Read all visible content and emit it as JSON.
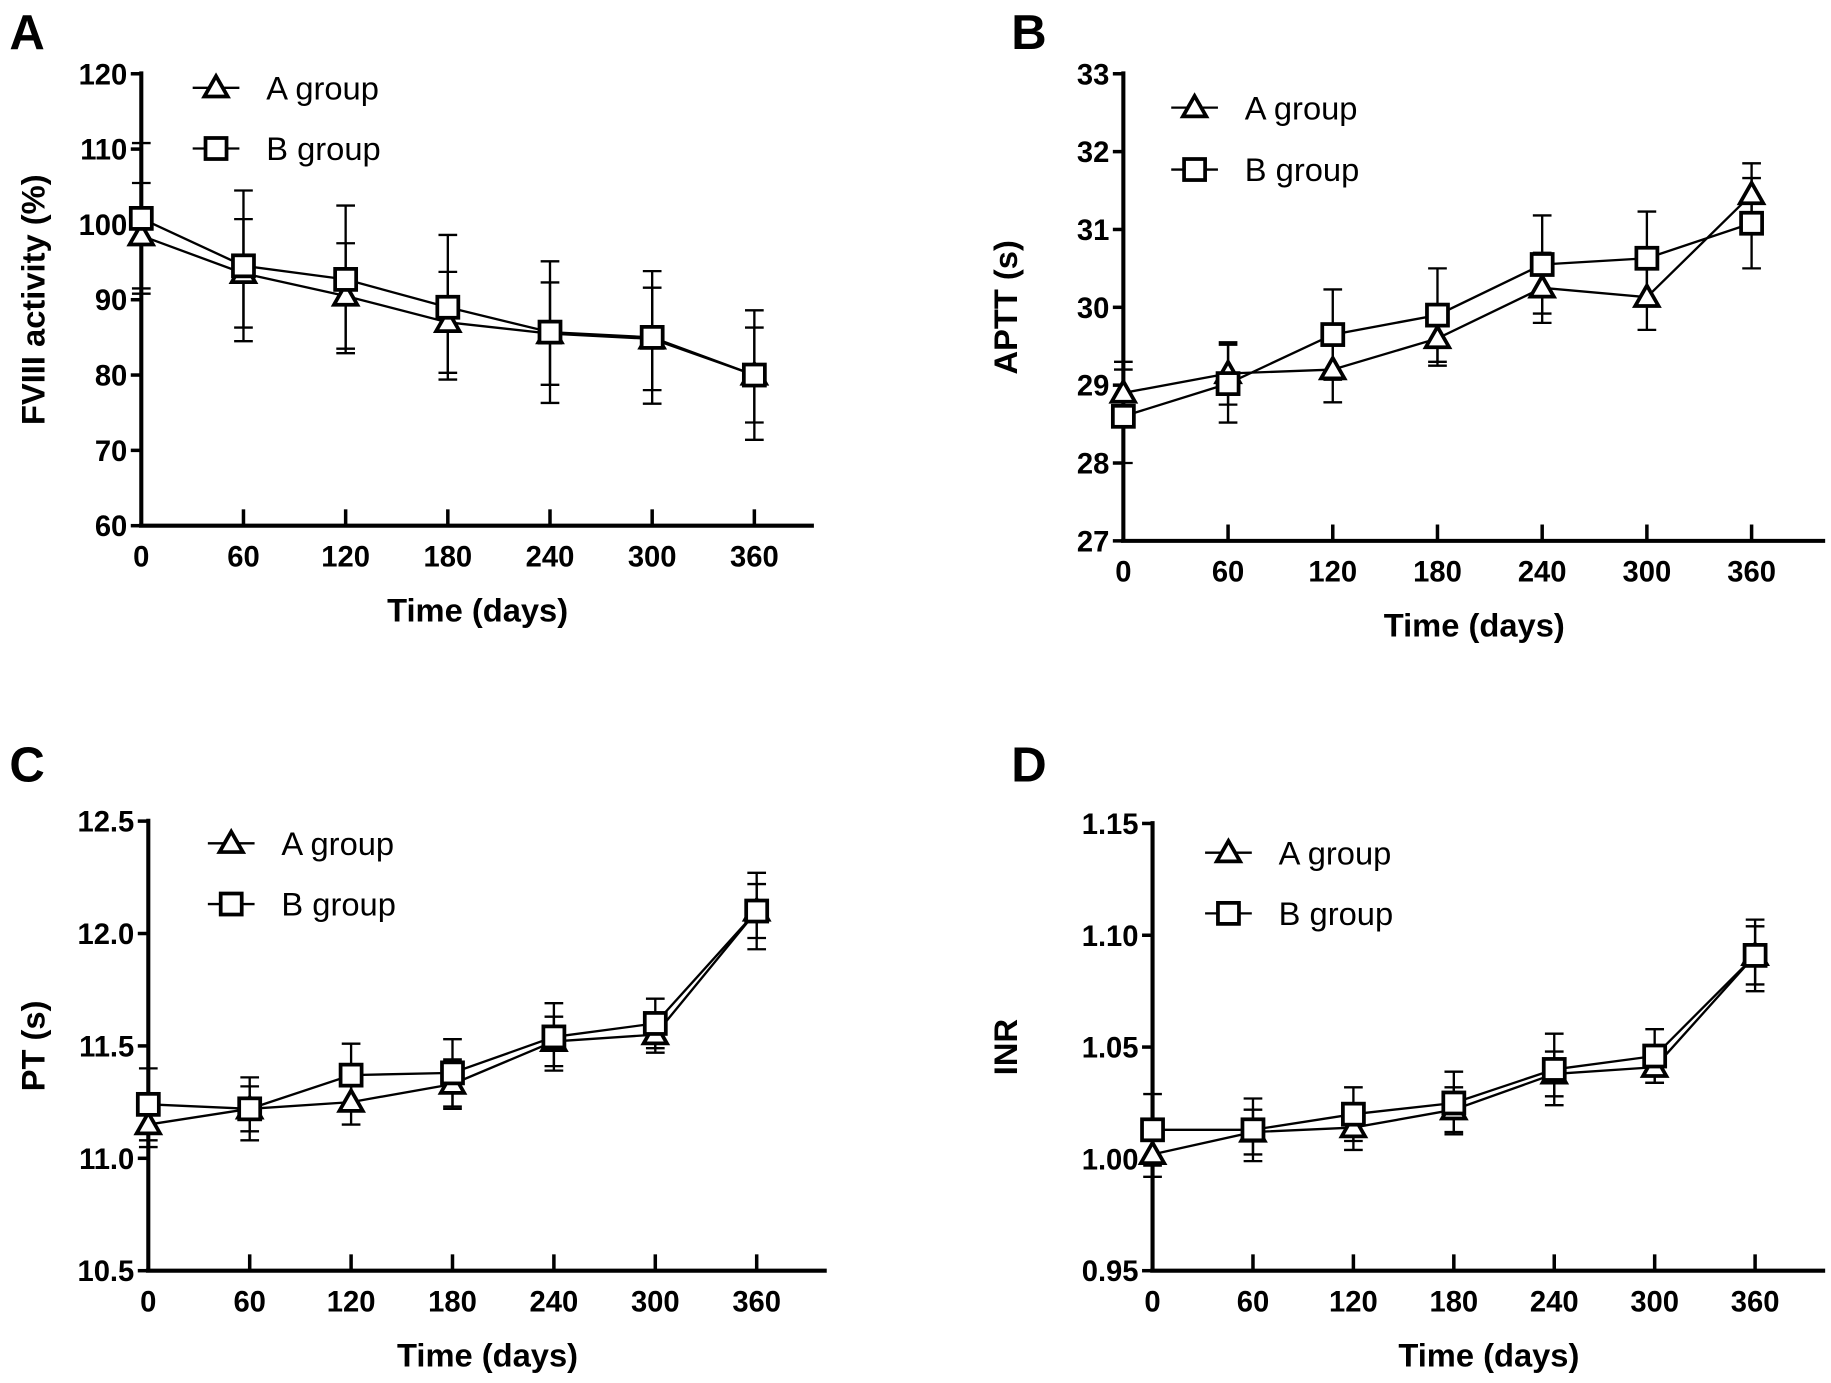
{
  "chart_data": [
    {
      "type": "line",
      "panel": "A",
      "xlabel": "Time (days)",
      "ylabel": "FVIII activity (%)",
      "x": [
        0,
        60,
        120,
        180,
        240,
        300,
        360
      ],
      "x_tick_labels": [
        "0",
        "60",
        "120",
        "180",
        "240",
        "300",
        "360"
      ],
      "ylim": [
        60,
        120
      ],
      "y_ticks": [
        60,
        70,
        80,
        90,
        100,
        110,
        120
      ],
      "y_tick_labels": [
        "60",
        "70",
        "80",
        "90",
        "100",
        "110",
        "120"
      ],
      "legend": [
        "A group",
        "B group"
      ],
      "legend_position": "top-left",
      "series": [
        {
          "name": "A group",
          "marker": "triangle",
          "values": [
            98.5,
            93.5,
            90.5,
            87.0,
            85.5,
            84.8,
            80.0
          ],
          "error": [
            7.0,
            7.2,
            7.0,
            6.7,
            6.8,
            6.8,
            6.3
          ]
        },
        {
          "name": "B group",
          "marker": "square",
          "values": [
            100.8,
            94.5,
            92.7,
            89.0,
            85.7,
            85.0,
            80.0
          ],
          "error": [
            10.0,
            10.0,
            9.8,
            9.6,
            9.4,
            8.8,
            8.6
          ]
        }
      ]
    },
    {
      "type": "line",
      "panel": "B",
      "xlabel": "Time (days)",
      "ylabel": "APTT (s)",
      "x": [
        0,
        60,
        120,
        180,
        240,
        300,
        360
      ],
      "x_tick_labels": [
        "0",
        "60",
        "120",
        "180",
        "240",
        "300",
        "360"
      ],
      "ylim": [
        27,
        33
      ],
      "y_ticks": [
        27,
        28,
        29,
        30,
        31,
        32,
        33
      ],
      "y_tick_labels": [
        "27",
        "28",
        "29",
        "30",
        "31",
        "32",
        "33"
      ],
      "legend": [
        "A group",
        "B group"
      ],
      "legend_position": "top-left",
      "series": [
        {
          "name": "A group",
          "marker": "triangle",
          "values": [
            28.9,
            29.15,
            29.2,
            29.6,
            30.25,
            30.13,
            31.45
          ],
          "error": [
            0.4,
            0.4,
            0.42,
            0.35,
            0.45,
            0.42,
            0.4
          ]
        },
        {
          "name": "B group",
          "marker": "square",
          "values": [
            28.6,
            29.02,
            29.65,
            29.9,
            30.55,
            30.63,
            31.08
          ],
          "error": [
            0.6,
            0.5,
            0.58,
            0.6,
            0.63,
            0.6,
            0.58
          ]
        }
      ]
    },
    {
      "type": "line",
      "panel": "C",
      "xlabel": "Time (days)",
      "ylabel": "PT (s)",
      "x": [
        0,
        60,
        120,
        180,
        240,
        300,
        360
      ],
      "x_tick_labels": [
        "0",
        "60",
        "120",
        "180",
        "240",
        "300",
        "360"
      ],
      "ylim": [
        10.5,
        12.5
      ],
      "y_ticks": [
        10.5,
        11.0,
        11.5,
        12.0,
        12.5
      ],
      "y_tick_labels": [
        "10.5",
        "11.0",
        "11.5",
        "12.0",
        "12.5"
      ],
      "legend": [
        "A group",
        "B group"
      ],
      "legend_position": "top-left",
      "series": [
        {
          "name": "A group",
          "marker": "triangle",
          "values": [
            11.15,
            11.22,
            11.25,
            11.33,
            11.52,
            11.55,
            12.1
          ],
          "error": [
            0.1,
            0.1,
            0.1,
            0.11,
            0.11,
            0.08,
            0.12
          ]
        },
        {
          "name": "B group",
          "marker": "square",
          "values": [
            11.24,
            11.22,
            11.37,
            11.38,
            11.54,
            11.6,
            12.1
          ],
          "error": [
            0.16,
            0.14,
            0.14,
            0.15,
            0.15,
            0.11,
            0.17
          ]
        }
      ]
    },
    {
      "type": "line",
      "panel": "D",
      "xlabel": "Time (days)",
      "ylabel": "INR",
      "x": [
        0,
        60,
        120,
        180,
        240,
        300,
        360
      ],
      "x_tick_labels": [
        "0",
        "60",
        "120",
        "180",
        "240",
        "300",
        "360"
      ],
      "ylim": [
        0.95,
        1.15
      ],
      "y_ticks": [
        0.95,
        1.0,
        1.05,
        1.1,
        1.15
      ],
      "y_tick_labels": [
        "0.95",
        "1.00",
        "1.05",
        "1.10",
        "1.15"
      ],
      "legend": [
        "A group",
        "B group"
      ],
      "legend_position": "top-left",
      "series": [
        {
          "name": "A group",
          "marker": "triangle",
          "values": [
            1.002,
            1.012,
            1.014,
            1.022,
            1.038,
            1.041,
            1.091
          ],
          "error": [
            0.01,
            0.01,
            0.01,
            0.01,
            0.01,
            0.007,
            0.013
          ]
        },
        {
          "name": "B group",
          "marker": "square",
          "values": [
            1.013,
            1.013,
            1.02,
            1.025,
            1.04,
            1.046,
            1.091
          ],
          "error": [
            0.016,
            0.014,
            0.012,
            0.014,
            0.016,
            0.012,
            0.016
          ]
        }
      ]
    }
  ]
}
